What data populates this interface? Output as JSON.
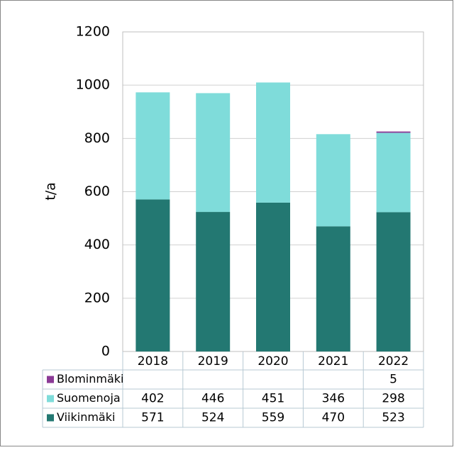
{
  "chart_data": {
    "type": "stacked_bar",
    "y_label": "t/a",
    "categories": [
      "2018",
      "2019",
      "2020",
      "2021",
      "2022"
    ],
    "series": [
      {
        "name": "Blominmäki",
        "color": "#8b3a96",
        "values": [
          null,
          null,
          null,
          null,
          5
        ]
      },
      {
        "name": "Suomenoja",
        "color": "#7fdcda",
        "values": [
          402,
          446,
          451,
          346,
          298
        ]
      },
      {
        "name": "Viikinmäki",
        "color": "#237872",
        "values": [
          571,
          524,
          559,
          470,
          523
        ]
      }
    ],
    "ylim": [
      0,
      1200
    ],
    "yticks": [
      0,
      200,
      400,
      600,
      800,
      1000,
      1200
    ],
    "grid": true
  }
}
